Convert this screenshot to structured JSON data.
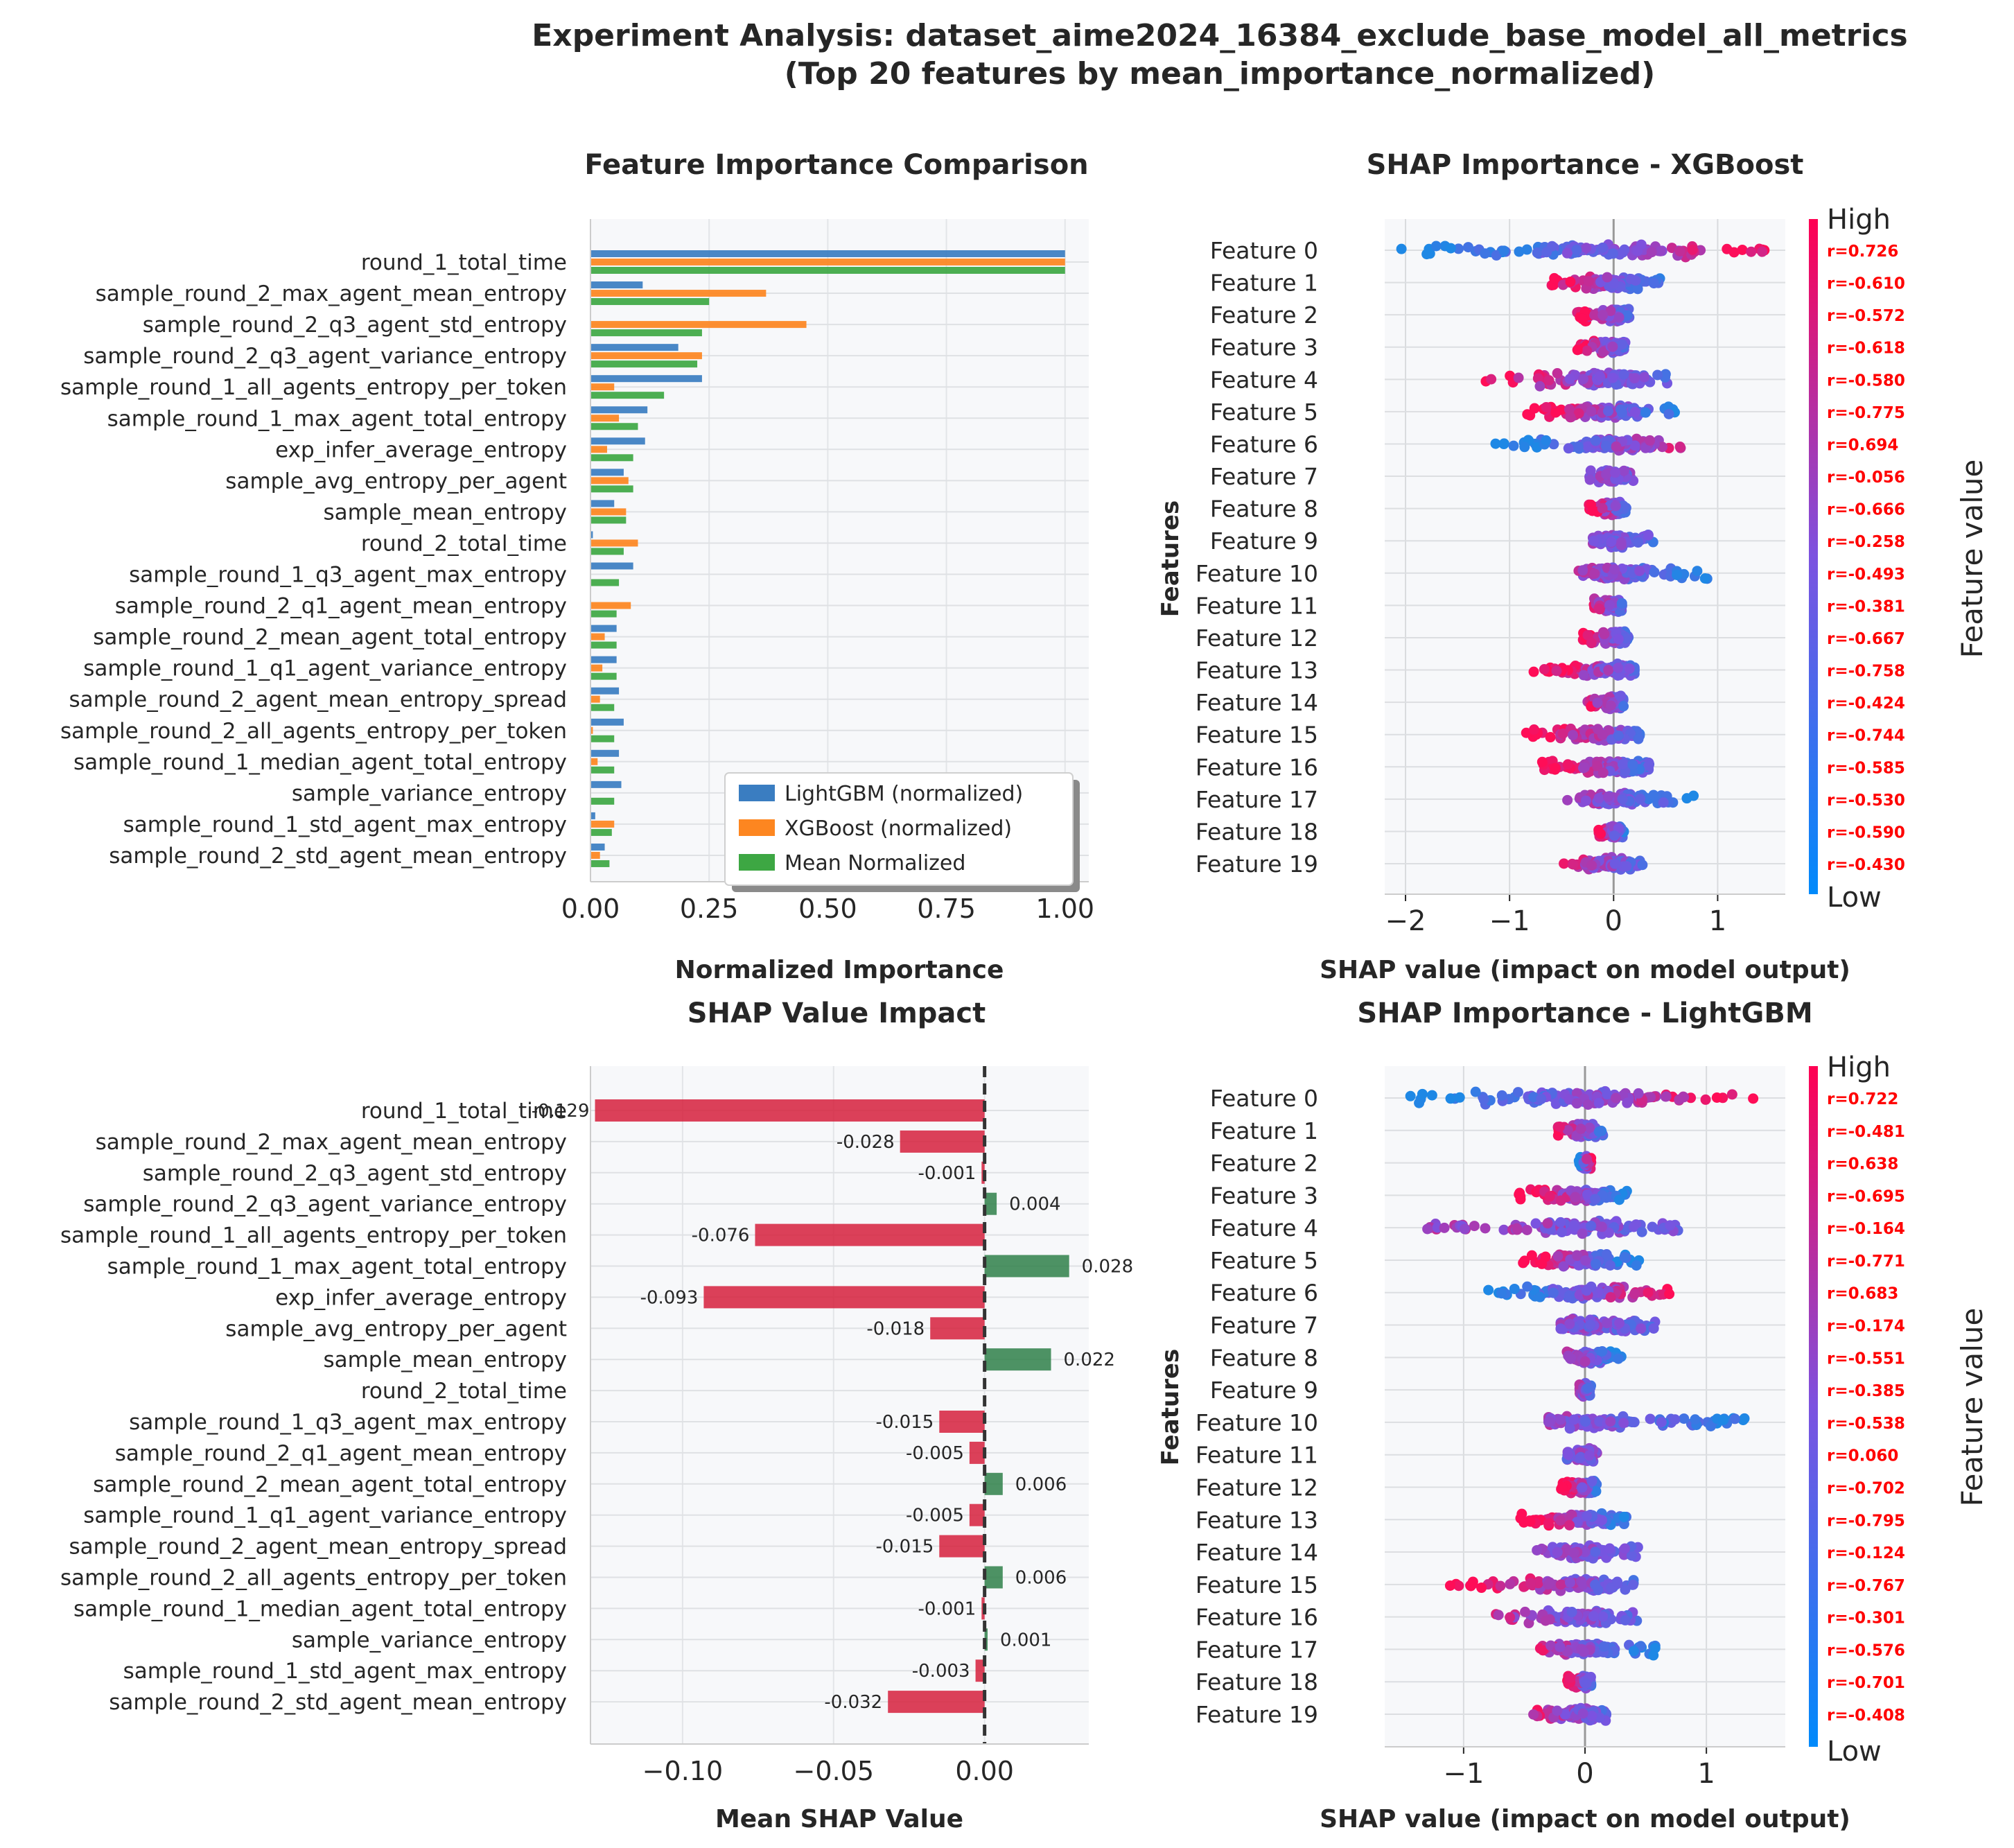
{
  "suptitle": {
    "line1": "Experiment Analysis: dataset_aime2024_16384_exclude_base_model_all_metrics",
    "line2": "(Top 20 features by mean_importance_normalized)"
  },
  "features": [
    "round_1_total_time",
    "sample_round_2_max_agent_mean_entropy",
    "sample_round_2_q3_agent_std_entropy",
    "sample_round_2_q3_agent_variance_entropy",
    "sample_round_1_all_agents_entropy_per_token",
    "sample_round_1_max_agent_total_entropy",
    "exp_infer_average_entropy",
    "sample_avg_entropy_per_agent",
    "sample_mean_entropy",
    "round_2_total_time",
    "sample_round_1_q3_agent_max_entropy",
    "sample_round_2_q1_agent_mean_entropy",
    "sample_round_2_mean_agent_total_entropy",
    "sample_round_1_q1_agent_variance_entropy",
    "sample_round_2_agent_mean_entropy_spread",
    "sample_round_2_all_agents_entropy_per_token",
    "sample_round_1_median_agent_total_entropy",
    "sample_variance_entropy",
    "sample_round_1_std_agent_max_entropy",
    "sample_round_2_std_agent_mean_entropy"
  ],
  "feature_ids": [
    "Feature 0",
    "Feature 1",
    "Feature 2",
    "Feature 3",
    "Feature 4",
    "Feature 5",
    "Feature 6",
    "Feature 7",
    "Feature 8",
    "Feature 9",
    "Feature 10",
    "Feature 11",
    "Feature 12",
    "Feature 13",
    "Feature 14",
    "Feature 15",
    "Feature 16",
    "Feature 17",
    "Feature 18",
    "Feature 19"
  ],
  "colors": {
    "lightgbm": "#3a7dc1",
    "xgboost": "#fd8620",
    "mean": "#3da743",
    "negative": "#d6203c",
    "positive": "#2f8049",
    "shap_low": "#1e88e5",
    "shap_high": "#ff0d57",
    "r_text": "#ff0000",
    "panel_bg": "#f7f8fa"
  },
  "chart_data": [
    {
      "type": "bar",
      "orientation": "horizontal",
      "title": "Feature Importance Comparison",
      "xlabel": "Normalized Importance",
      "ylabel": "",
      "xlim": [
        0,
        1.05
      ],
      "xticks": [
        "0.00",
        "0.25",
        "0.50",
        "0.75",
        "1.00"
      ],
      "legend": {
        "position": "lower-right",
        "entries": [
          "LightGBM (normalized)",
          "XGBoost (normalized)",
          "Mean Normalized"
        ]
      },
      "series": [
        {
          "name": "LightGBM (normalized)",
          "values": [
            1.0,
            0.11,
            0.0,
            0.185,
            0.235,
            0.12,
            0.115,
            0.07,
            0.05,
            0.005,
            0.09,
            0.0,
            0.055,
            0.055,
            0.06,
            0.07,
            0.06,
            0.065,
            0.01,
            0.03
          ]
        },
        {
          "name": "XGBoost (normalized)",
          "values": [
            1.0,
            0.37,
            0.455,
            0.235,
            0.05,
            0.06,
            0.035,
            0.08,
            0.075,
            0.1,
            0.0,
            0.085,
            0.03,
            0.025,
            0.02,
            0.005,
            0.015,
            0.0,
            0.05,
            0.02
          ]
        },
        {
          "name": "Mean Normalized",
          "values": [
            1.0,
            0.25,
            0.235,
            0.225,
            0.155,
            0.1,
            0.09,
            0.09,
            0.075,
            0.07,
            0.06,
            0.055,
            0.055,
            0.055,
            0.05,
            0.05,
            0.05,
            0.05,
            0.045,
            0.04
          ]
        }
      ]
    },
    {
      "type": "scatter",
      "subtype": "shap-beeswarm",
      "title": "SHAP Importance - XGBoost",
      "xlabel": "SHAP value (impact on model output)",
      "ylabel": "Features",
      "xlim": [
        -2.2,
        1.65
      ],
      "xticks": [
        "−2",
        "−1",
        "0",
        "1"
      ],
      "colorbar": {
        "label": "Feature value",
        "high": "High",
        "low": "Low"
      },
      "ranges": [
        [
          -2.05,
          1.45
        ],
        [
          -0.6,
          0.45
        ],
        [
          -0.35,
          0.15
        ],
        [
          -0.35,
          0.12
        ],
        [
          -1.25,
          0.6
        ],
        [
          -0.9,
          0.6
        ],
        [
          -1.15,
          0.65
        ],
        [
          -0.25,
          0.2
        ],
        [
          -0.25,
          0.15
        ],
        [
          -0.2,
          0.45
        ],
        [
          -0.35,
          0.9
        ],
        [
          -0.2,
          0.08
        ],
        [
          -0.35,
          0.15
        ],
        [
          -0.8,
          0.2
        ],
        [
          -0.25,
          0.1
        ],
        [
          -0.85,
          0.25
        ],
        [
          -0.7,
          0.35
        ],
        [
          -0.5,
          0.8
        ],
        [
          -0.15,
          0.1
        ],
        [
          -0.5,
          0.3
        ]
      ],
      "correlations": [
        "r=0.726",
        "r=-0.610",
        "r=-0.572",
        "r=-0.618",
        "r=-0.580",
        "r=-0.775",
        "r=0.694",
        "r=-0.056",
        "r=-0.666",
        "r=-0.258",
        "r=-0.493",
        "r=-0.381",
        "r=-0.667",
        "r=-0.758",
        "r=-0.424",
        "r=-0.744",
        "r=-0.585",
        "r=-0.530",
        "r=-0.590",
        "r=-0.430"
      ]
    },
    {
      "type": "bar",
      "orientation": "horizontal",
      "title": "SHAP Value Impact",
      "xlabel": "Mean SHAP Value",
      "ylabel": "",
      "xlim": [
        -0.1305,
        0.0345
      ],
      "xticks": [
        "−0.10",
        "−0.05",
        "0.00"
      ],
      "values": [
        -0.129,
        -0.028,
        -0.001,
        0.004,
        -0.076,
        0.028,
        -0.093,
        -0.018,
        0.022,
        0.0,
        -0.015,
        -0.005,
        0.006,
        -0.005,
        -0.015,
        0.006,
        -0.001,
        0.001,
        -0.003,
        -0.032
      ],
      "labels": [
        "-0.129",
        "-0.028",
        "-0.001",
        "0.004",
        "-0.076",
        "0.028",
        "-0.093",
        "-0.018",
        "0.022",
        "",
        "-0.015",
        "-0.005",
        "0.006",
        "-0.005",
        "-0.015",
        "0.006",
        "-0.001",
        "0.001",
        "-0.003",
        "-0.032"
      ]
    },
    {
      "type": "scatter",
      "subtype": "shap-beeswarm",
      "title": "SHAP Importance - LightGBM",
      "xlabel": "SHAP value (impact on model output)",
      "ylabel": "Features",
      "xlim": [
        -1.65,
        1.65
      ],
      "xticks": [
        "−1",
        "0",
        "1"
      ],
      "colorbar": {
        "label": "Feature value",
        "high": "High",
        "low": "Low"
      },
      "ranges": [
        [
          -1.55,
          1.5
        ],
        [
          -0.25,
          0.15
        ],
        [
          -0.05,
          0.05
        ],
        [
          -0.55,
          0.35
        ],
        [
          -1.3,
          0.85
        ],
        [
          -0.55,
          0.45
        ],
        [
          -0.8,
          0.7
        ],
        [
          -0.2,
          0.6
        ],
        [
          -0.15,
          0.3
        ],
        [
          -0.05,
          0.05
        ],
        [
          -0.3,
          1.35
        ],
        [
          -0.15,
          0.1
        ],
        [
          -0.2,
          0.1
        ],
        [
          -0.55,
          0.35
        ],
        [
          -0.4,
          0.45
        ],
        [
          -1.2,
          0.4
        ],
        [
          -0.75,
          0.45
        ],
        [
          -0.4,
          0.6
        ],
        [
          -0.15,
          0.05
        ],
        [
          -0.45,
          0.2
        ]
      ],
      "correlations": [
        "r=0.722",
        "r=-0.481",
        "r=0.638",
        "r=-0.695",
        "r=-0.164",
        "r=-0.771",
        "r=0.683",
        "r=-0.174",
        "r=-0.551",
        "r=-0.385",
        "r=-0.538",
        "r=0.060",
        "r=-0.702",
        "r=-0.795",
        "r=-0.124",
        "r=-0.767",
        "r=-0.301",
        "r=-0.576",
        "r=-0.701",
        "r=-0.408"
      ]
    }
  ]
}
